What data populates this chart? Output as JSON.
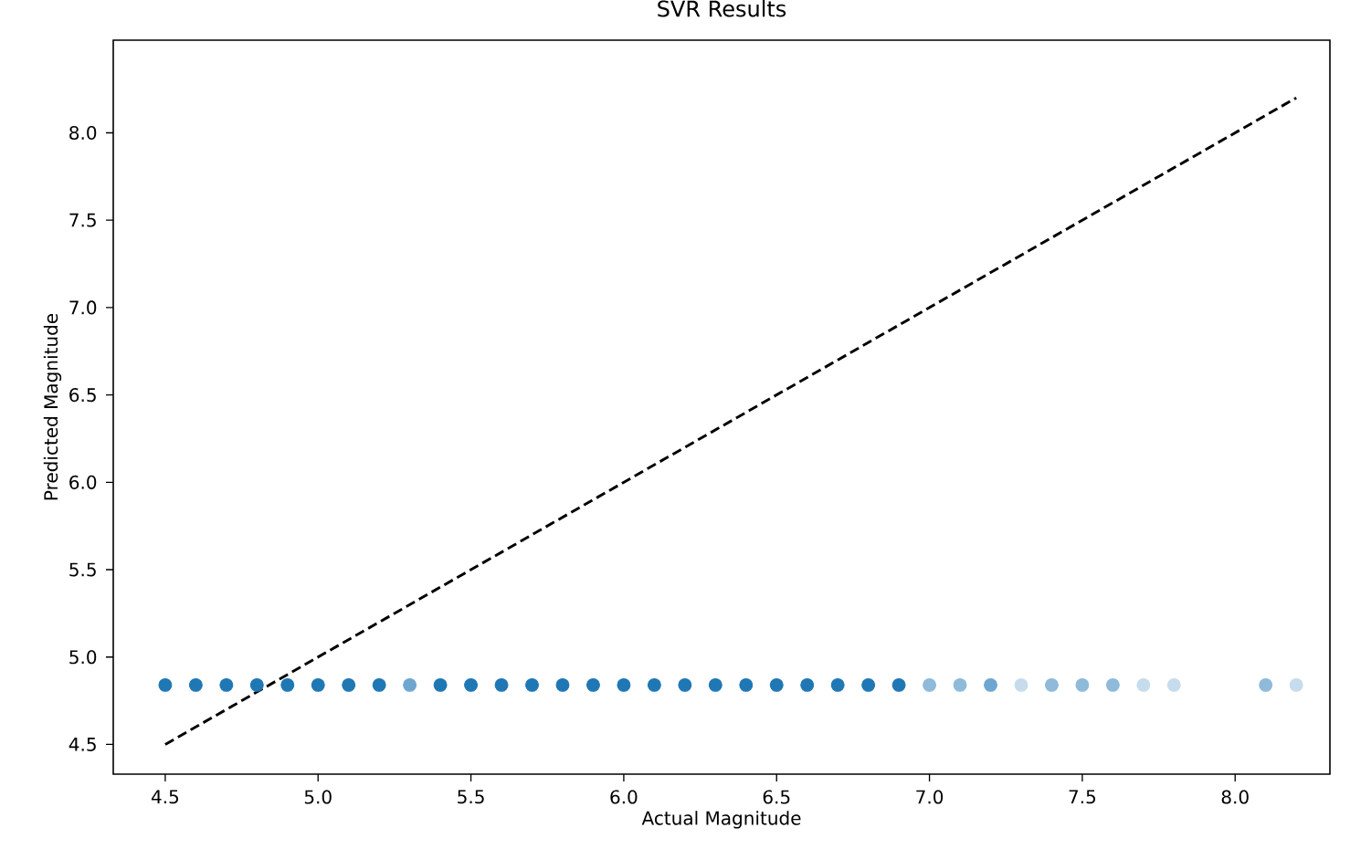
{
  "chart_data": {
    "type": "scatter",
    "title": "SVR Results",
    "xlabel": "Actual Magnitude",
    "ylabel": "Predicted Magnitude",
    "xlim": [
      4.33,
      8.31
    ],
    "ylim": [
      4.33,
      8.53
    ],
    "xticks": [
      4.5,
      {
        "value": 5,
        "label": "5.0"
      },
      5.5,
      {
        "value": 6,
        "label": "6.0"
      },
      6.5,
      {
        "value": 7,
        "label": "7.0"
      },
      7.5,
      {
        "value": 8,
        "label": "8.0"
      }
    ],
    "yticks": [
      4.5,
      {
        "value": 5,
        "label": "5.0"
      },
      5.5,
      {
        "value": 6,
        "label": "6.0"
      },
      6.5,
      {
        "value": 7,
        "label": "7.0"
      },
      7.5,
      {
        "value": 8,
        "label": "8.0"
      }
    ],
    "grid": false,
    "series": [
      {
        "marker": "circle",
        "x": [
          4.5,
          4.6,
          4.7,
          4.8,
          4.9,
          5.0,
          5.1,
          5.2,
          5.3,
          5.4,
          5.5,
          5.6,
          5.7,
          5.8,
          5.9,
          6.0,
          6.1,
          6.2,
          6.3,
          6.4,
          6.5,
          6.6,
          6.7,
          6.8,
          6.9,
          7.0,
          7.1,
          7.2,
          7.3,
          7.4,
          7.5,
          7.6,
          7.7,
          7.8,
          8.1,
          8.2
        ],
        "values": [
          4.84,
          4.84,
          4.84,
          4.84,
          4.84,
          4.84,
          4.84,
          4.84,
          4.84,
          4.84,
          4.84,
          4.84,
          4.84,
          4.84,
          4.84,
          4.84,
          4.84,
          4.84,
          4.84,
          4.84,
          4.84,
          4.84,
          4.84,
          4.84,
          4.84,
          4.84,
          4.84,
          4.84,
          4.84,
          4.84,
          4.84,
          4.84,
          4.84,
          4.84,
          4.84,
          4.84
        ],
        "colors": [
          "#1f77b4",
          "#1f77b4",
          "#1f77b4",
          "#1f77b4",
          "#1f77b4",
          "#1f77b4",
          "#1f77b4",
          "#1f77b4",
          "#6fa6cf",
          "#1f77b4",
          "#1f77b4",
          "#1f77b4",
          "#1f77b4",
          "#1f77b4",
          "#1f77b4",
          "#1f77b4",
          "#1f77b4",
          "#1f77b4",
          "#1f77b4",
          "#1f77b4",
          "#1f77b4",
          "#1f77b4",
          "#1f77b4",
          "#1f77b4",
          "#1f77b4",
          "#8fbad9",
          "#8fbad9",
          "#6fa6cf",
          "#c6dcec",
          "#8fbad9",
          "#8fbad9",
          "#8fbad9",
          "#c6dcec",
          "#c6dcec",
          "#8fbad9",
          "#c6dcec"
        ]
      },
      {
        "type": "line",
        "x": [
          4.5,
          8.2
        ],
        "values": [
          4.5,
          8.2
        ],
        "color": "#000000",
        "line_style": "dashed"
      }
    ]
  }
}
